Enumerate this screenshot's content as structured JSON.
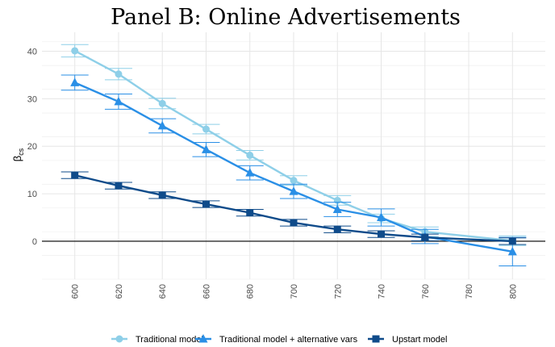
{
  "chart_data": {
    "type": "line",
    "title": "Panel B: Online Advertisements",
    "ylabel": "β",
    "ylabel_sub": "cs",
    "xlabel": "",
    "x": [
      600,
      620,
      640,
      660,
      680,
      700,
      720,
      740,
      760,
      780,
      800
    ],
    "x_ticks": [
      "600",
      "620",
      "640",
      "660",
      "680",
      "700",
      "720",
      "740",
      "760",
      "780",
      "800"
    ],
    "xlim": [
      585,
      815
    ],
    "ylim": [
      -8,
      44
    ],
    "y_ticks": [
      "0",
      "10",
      "20",
      "30",
      "40"
    ],
    "y_tick_values": [
      0,
      10,
      20,
      30,
      40
    ],
    "grid": true,
    "legend_position": "bottom",
    "series": [
      {
        "name": "Traditional model",
        "color": "#8ecfe8",
        "marker": "circle",
        "x": [
          600,
          620,
          640,
          660,
          680,
          700,
          720,
          740,
          760,
          800
        ],
        "values": [
          40.1,
          35.2,
          29.0,
          23.6,
          18.1,
          12.8,
          8.6,
          4.8,
          2.0,
          0.1
        ],
        "ci_low": [
          38.8,
          34.0,
          27.9,
          22.6,
          17.1,
          11.8,
          7.6,
          3.9,
          1.0,
          -0.9
        ],
        "ci_high": [
          41.4,
          36.4,
          30.1,
          24.6,
          19.1,
          13.8,
          9.6,
          5.7,
          3.0,
          1.1
        ]
      },
      {
        "name": "Traditional model + alternative vars",
        "color": "#2a8fe6",
        "marker": "triangle",
        "x": [
          600,
          620,
          640,
          660,
          680,
          700,
          720,
          740,
          760,
          800
        ],
        "values": [
          33.4,
          29.4,
          24.3,
          19.3,
          14.4,
          10.5,
          6.7,
          5.0,
          1.0,
          -2.2
        ],
        "ci_low": [
          31.8,
          27.8,
          22.8,
          17.8,
          12.9,
          9.0,
          5.2,
          3.2,
          -0.5,
          -5.2
        ],
        "ci_high": [
          35.0,
          31.0,
          25.8,
          20.8,
          15.9,
          12.0,
          8.2,
          6.8,
          2.5,
          0.8
        ]
      },
      {
        "name": "Upstart model",
        "color": "#0f4b8a",
        "marker": "square",
        "x": [
          600,
          620,
          640,
          660,
          680,
          700,
          720,
          740,
          760,
          800
        ],
        "values": [
          13.9,
          11.7,
          9.7,
          7.8,
          6.0,
          3.9,
          2.5,
          1.5,
          0.8,
          0.0
        ],
        "ci_low": [
          13.2,
          11.0,
          9.0,
          7.1,
          5.3,
          3.2,
          1.8,
          0.8,
          0.1,
          -0.7
        ],
        "ci_high": [
          14.6,
          12.4,
          10.4,
          8.5,
          6.7,
          4.6,
          3.2,
          2.2,
          1.5,
          0.7
        ]
      }
    ]
  }
}
